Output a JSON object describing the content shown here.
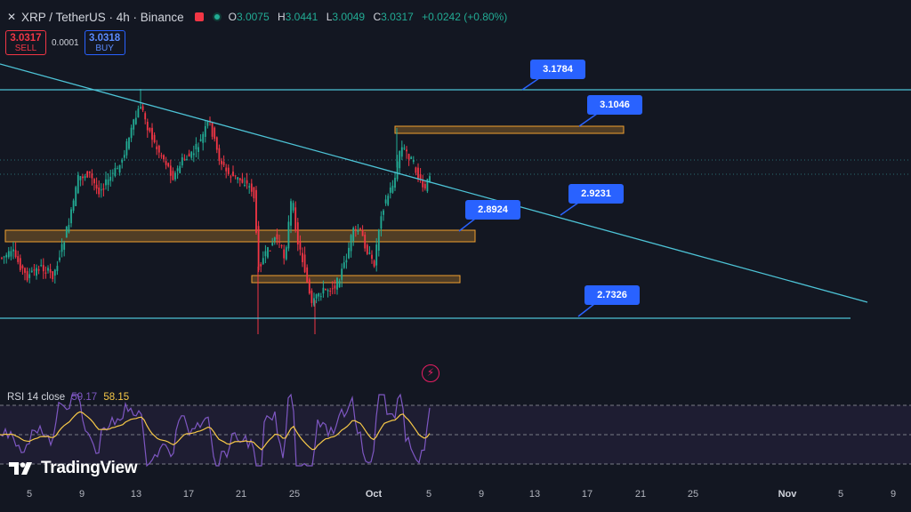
{
  "header": {
    "symbol": "XRP / TetherUS · 4h · Binance",
    "ohlc": {
      "o_label": "O",
      "o": "3.0075",
      "h_label": "H",
      "h": "3.0441",
      "l_label": "L",
      "l": "3.0049",
      "c_label": "C",
      "c": "3.0317",
      "change": "+0.0242 (+0.80%)"
    }
  },
  "trade": {
    "sell_price": "3.0317",
    "sell_label": "SELL",
    "spread": "0.0001",
    "buy_price": "3.0318",
    "buy_label": "BUY"
  },
  "levels": {
    "l1": "3.1784",
    "l2": "3.1046",
    "l3": "2.9231",
    "l4": "2.8924",
    "l5": "2.7326"
  },
  "rsi": {
    "label": "RSI 14 close",
    "value": "59.17",
    "ma_value": "58.15"
  },
  "brand": {
    "name": "TradingView"
  },
  "xaxis": [
    "5",
    "9",
    "13",
    "17",
    "21",
    "25",
    "Oct",
    "5",
    "9",
    "13",
    "17",
    "21",
    "25",
    "Nov",
    "5",
    "9"
  ],
  "colors": {
    "background": "#131722",
    "up": "#22ab94",
    "down": "#f23645",
    "trendline": "#4dc3d6",
    "zone": "#f0a030",
    "callout": "#2962ff",
    "rsi": "#7e57c2",
    "rsi_ma": "#f7c948"
  },
  "icons": {
    "alert": "lightning-bolt-icon",
    "logo": "tradingview-logo-icon"
  }
}
